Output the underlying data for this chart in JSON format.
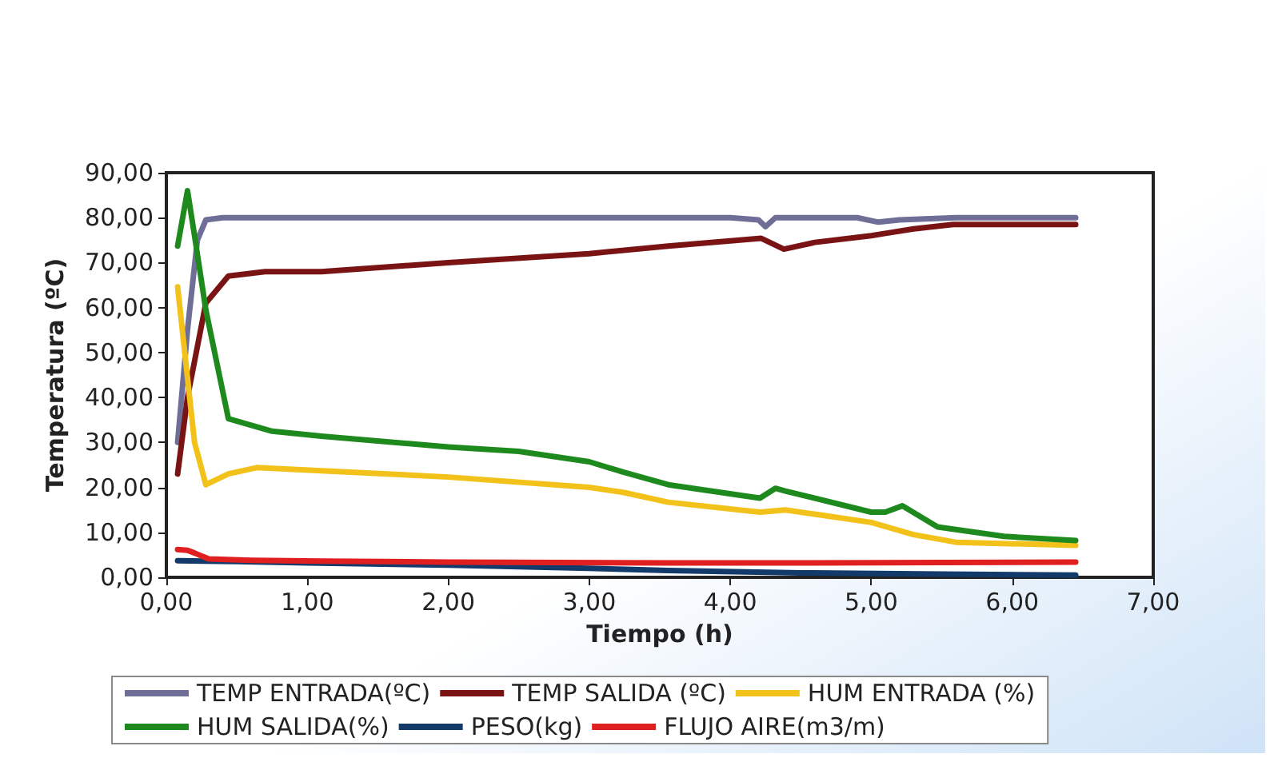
{
  "chart_data": {
    "type": "line",
    "xlabel": "Tiempo (h)",
    "ylabel": "Temperatura (ºC)",
    "xlim": [
      0,
      7
    ],
    "xticks": [
      {
        "value": 0,
        "label": "0,00"
      },
      {
        "value": 1,
        "label": "1,00"
      },
      {
        "value": 2,
        "label": "2,00"
      },
      {
        "value": 3,
        "label": "3,00"
      },
      {
        "value": 4,
        "label": "4,00"
      },
      {
        "value": 5,
        "label": "5,00"
      },
      {
        "value": 6,
        "label": "6,00"
      },
      {
        "value": 7,
        "label": "7,00"
      }
    ],
    "ylim": [
      0,
      90
    ],
    "yticks": [
      {
        "value": 0,
        "label": "0,00"
      },
      {
        "value": 10,
        "label": "10,00"
      },
      {
        "value": 20,
        "label": "20,00"
      },
      {
        "value": 30,
        "label": "30,00"
      },
      {
        "value": 40,
        "label": "40,00"
      },
      {
        "value": 50,
        "label": "50,00"
      },
      {
        "value": 60,
        "label": "60,00"
      },
      {
        "value": 70,
        "label": "70,00"
      },
      {
        "value": 80,
        "label": "80,00"
      },
      {
        "value": 90,
        "label": "90,00"
      }
    ],
    "grid": false,
    "legend": "bottom",
    "marker": "none",
    "line_style": "solid",
    "series": [
      {
        "name": "TEMP ENTRADA(ºC)",
        "color": "#6e6e96",
        "x": [
          0.08,
          0.15,
          0.22,
          0.28,
          0.4,
          1,
          2,
          3,
          4,
          4.2,
          4.25,
          4.32,
          4.5,
          4.9,
          5.05,
          5.2,
          5.6,
          6.45
        ],
        "values": [
          30,
          55,
          75,
          79.5,
          80,
          80,
          80,
          80,
          80,
          79.5,
          78,
          80,
          80,
          80,
          79,
          79.5,
          80,
          80
        ]
      },
      {
        "name": "TEMP SALIDA (ºC)",
        "color": "#7a1414",
        "x": [
          0.08,
          0.15,
          0.28,
          0.44,
          0.7,
          1.1,
          2,
          3,
          3.56,
          4.22,
          4.38,
          4.6,
          5,
          5.1,
          5.3,
          5.58,
          6.45
        ],
        "values": [
          23,
          40,
          61,
          67,
          68,
          68,
          70,
          72,
          73.7,
          75.4,
          73,
          74.5,
          76,
          76.5,
          77.5,
          78.5,
          78.5
        ]
      },
      {
        "name": "HUM ENTRADA (%)",
        "color": "#f2c21b",
        "x": [
          0.08,
          0.2,
          0.28,
          0.44,
          0.64,
          1.1,
          2,
          3,
          3.24,
          3.56,
          4.21,
          4.39,
          5,
          5.3,
          5.6,
          6.45
        ],
        "values": [
          64.6,
          30,
          20.6,
          23,
          24.4,
          23.7,
          22.3,
          20,
          18.9,
          16.7,
          14.5,
          15,
          12.2,
          9.5,
          7.8,
          7.1
        ]
      },
      {
        "name": "HUM SALIDA(%)",
        "color": "#1e8a1e",
        "x": [
          0.08,
          0.15,
          0.2,
          0.28,
          0.44,
          0.75,
          1.1,
          2,
          2.5,
          3,
          3.24,
          3.56,
          4.21,
          4.32,
          4.39,
          5,
          5.1,
          5.22,
          5.47,
          5.94,
          6.45
        ],
        "values": [
          73.7,
          86,
          76,
          59.5,
          35.3,
          32.5,
          31.4,
          29,
          28,
          25.7,
          23.4,
          20.6,
          17.6,
          19.8,
          19.2,
          14.5,
          14.5,
          15.9,
          11.2,
          9.1,
          8.2
        ]
      },
      {
        "name": "PESO(kg)",
        "color": "#123a6a",
        "x": [
          0.08,
          0.5,
          1,
          2,
          3,
          3.56,
          4.5,
          5.5,
          6.45
        ],
        "values": [
          3.7,
          3.5,
          3.2,
          2.7,
          2,
          1.5,
          1,
          0.7,
          0.5
        ]
      },
      {
        "name": "FLUJO AIRE(m3/m)",
        "color": "#e02020",
        "x": [
          0.08,
          0.15,
          0.2,
          0.3,
          0.6,
          1.1,
          2,
          3.56,
          4.5,
          5.5,
          6.45
        ],
        "values": [
          6.2,
          6,
          5.4,
          4.1,
          3.8,
          3.6,
          3.4,
          3.2,
          3.2,
          3.3,
          3.4
        ]
      }
    ]
  }
}
